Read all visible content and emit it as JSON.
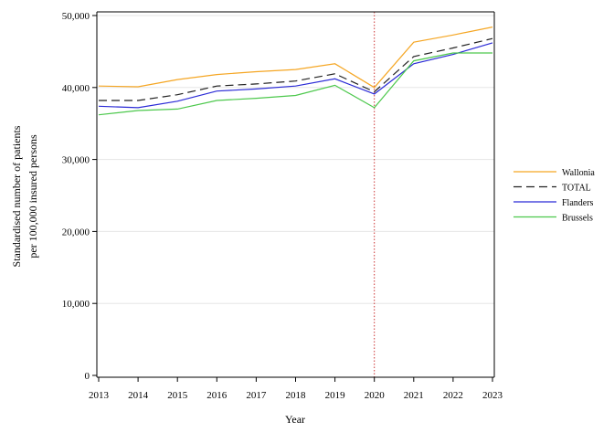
{
  "chart_data": {
    "type": "line",
    "title": "",
    "xlabel": "Year",
    "ylabel_line1": "Standardised number of patients",
    "ylabel_line2": "per 100,000 insured persons",
    "x": [
      2013,
      2014,
      2015,
      2016,
      2017,
      2018,
      2019,
      2020,
      2021,
      2022,
      2023
    ],
    "x_tick_labels": [
      "2013",
      "2014",
      "2015",
      "2016",
      "2017",
      "2018",
      "2019",
      "2020",
      "2021",
      "2022",
      "2023"
    ],
    "ylim": [
      0,
      50000
    ],
    "y_ticks": [
      0,
      10000,
      20000,
      30000,
      40000,
      50000
    ],
    "y_tick_labels": [
      "0",
      "10,000",
      "20,000",
      "30,000",
      "40,000",
      "50,000"
    ],
    "grid": "horizontal",
    "legend_position": "right",
    "reference_line": {
      "x": 2020,
      "color": "#cc3333",
      "style": "dotted"
    },
    "series": [
      {
        "name": "Wallonia",
        "color": "#f5a623",
        "dash": "solid",
        "values": [
          40200,
          40100,
          41100,
          41800,
          42200,
          42500,
          43300,
          40000,
          46300,
          47300,
          48400
        ]
      },
      {
        "name": "TOTAL",
        "color": "#222222",
        "dash": "dashed",
        "values": [
          38200,
          38200,
          39000,
          40200,
          40500,
          40900,
          41900,
          39400,
          44300,
          45500,
          46800
        ]
      },
      {
        "name": "Flanders",
        "color": "#2b2bd6",
        "dash": "solid",
        "values": [
          37400,
          37200,
          38100,
          39500,
          39800,
          40200,
          41200,
          39100,
          43300,
          44600,
          46200
        ]
      },
      {
        "name": "Brussels",
        "color": "#4cc84c",
        "dash": "solid",
        "values": [
          36200,
          36800,
          37000,
          38200,
          38500,
          38900,
          40300,
          37200,
          43700,
          44800,
          44800
        ]
      }
    ]
  }
}
